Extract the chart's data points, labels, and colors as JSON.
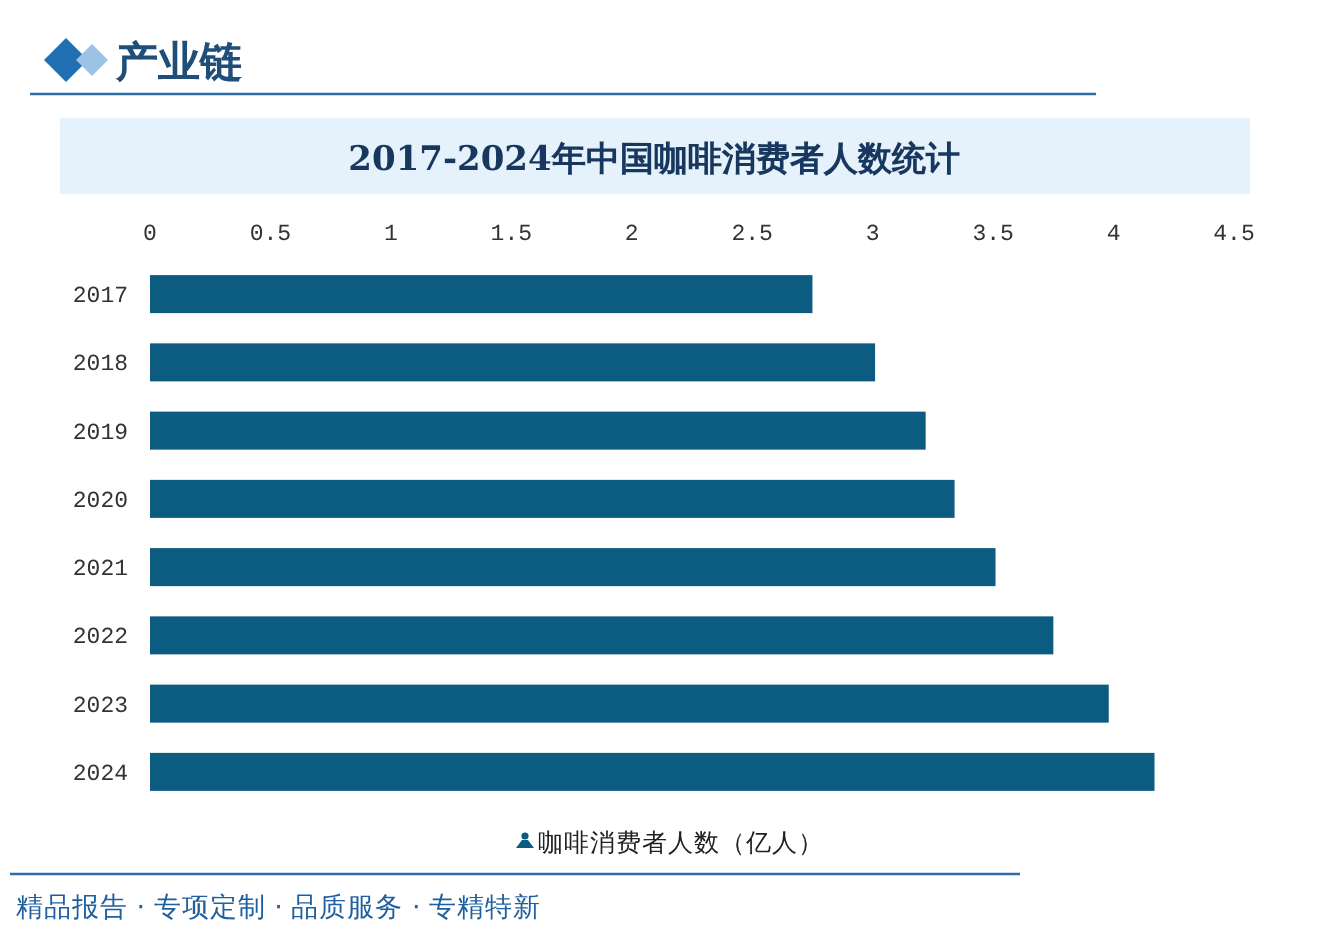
{
  "chart_data": {
    "type": "bar",
    "orientation": "horizontal",
    "title": "2017-2024年中国咖啡消费者人数统计",
    "categories": [
      "2017",
      "2018",
      "2019",
      "2020",
      "2021",
      "2022",
      "2023",
      "2024"
    ],
    "series": [
      {
        "name": "咖啡消费者人数（亿人）",
        "color": "#0b5c80",
        "values": [
          2.75,
          3.01,
          3.22,
          3.34,
          3.51,
          3.75,
          3.98,
          4.17
        ]
      }
    ],
    "xlim": [
      0,
      4.5
    ],
    "xticks": [
      0,
      0.5,
      1,
      1.5,
      2,
      2.5,
      3,
      3.5,
      4,
      4.5
    ],
    "grid": false,
    "legend": "bottom",
    "annotations": [
      "产业链",
      "精品报告 · 专项定制 · 品质服务 · 专精特新"
    ]
  }
}
